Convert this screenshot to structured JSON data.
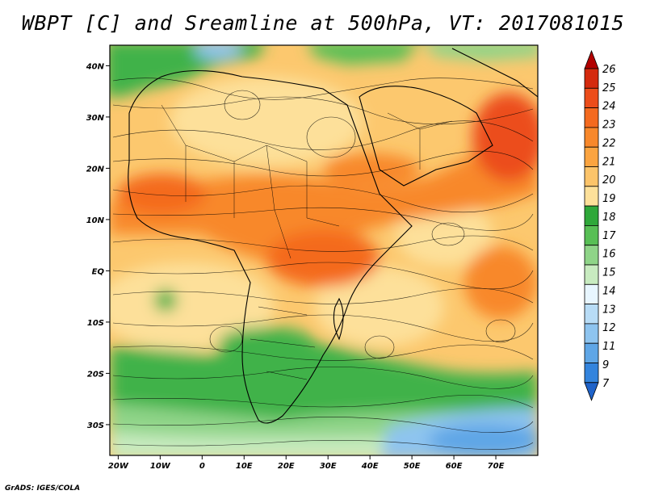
{
  "title": "WBPT [C] and Sreamline at 500hPa, VT: 2017081015",
  "footer": "GrADS: IGES/COLA",
  "map": {
    "lat_ticks": [
      "40N",
      "30N",
      "20N",
      "10N",
      "EQ",
      "10S",
      "20S",
      "30S"
    ],
    "lon_ticks": [
      "20W",
      "10W",
      "0",
      "10E",
      "20E",
      "30E",
      "40E",
      "50E",
      "60E",
      "70E"
    ],
    "lat_values": [
      40,
      30,
      20,
      10,
      0,
      -10,
      -20,
      -30
    ],
    "lon_values": [
      -20,
      -10,
      0,
      10,
      20,
      30,
      40,
      50,
      60,
      70
    ],
    "lon_range": [
      -22,
      80
    ],
    "lat_range": [
      -36,
      44
    ]
  },
  "colorbar": {
    "labels": [
      "26",
      "25",
      "24",
      "23",
      "22",
      "21",
      "20",
      "19",
      "18",
      "17",
      "16",
      "15",
      "14",
      "13",
      "12",
      "11",
      "9",
      "7"
    ],
    "colors": [
      "#b20000",
      "#d42a0e",
      "#ec4d1a",
      "#f46a1f",
      "#f8882b",
      "#fba440",
      "#fcc46a",
      "#fde09a",
      "#2fa83a",
      "#58bf55",
      "#8fd488",
      "#c8ebc0",
      "#e8f6ff",
      "#b8dcf6",
      "#8ec4ef",
      "#5fa6e6",
      "#3384dd",
      "#1f63c9"
    ]
  }
}
